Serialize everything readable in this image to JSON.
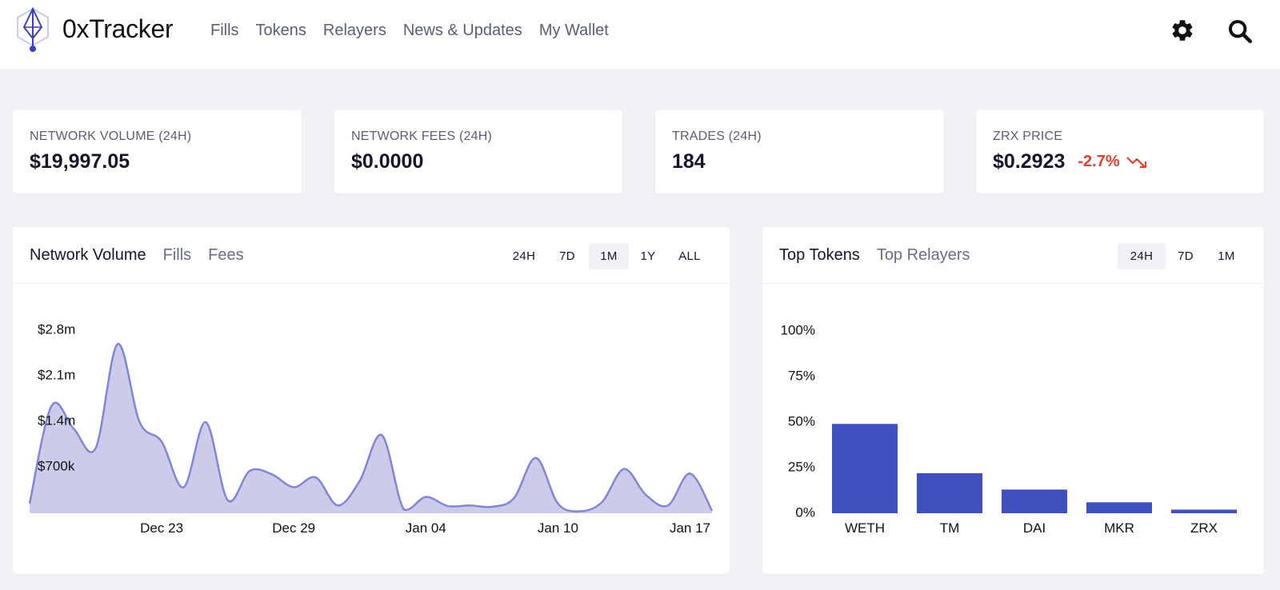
{
  "header": {
    "brand": "0xTracker",
    "nav": [
      "Fills",
      "Tokens",
      "Relayers",
      "News & Updates",
      "My Wallet"
    ]
  },
  "stats": [
    {
      "label": "NETWORK VOLUME (24H)",
      "value": "$19,997.05"
    },
    {
      "label": "NETWORK FEES (24H)",
      "value": "$0.0000"
    },
    {
      "label": "TRADES (24H)",
      "value": "184"
    },
    {
      "label": "ZRX PRICE",
      "value": "$0.2923",
      "change": "-2.7%"
    }
  ],
  "volume_panel": {
    "tabs": [
      "Network Volume",
      "Fills",
      "Fees"
    ],
    "periods": [
      "24H",
      "7D",
      "1M",
      "1Y",
      "ALL"
    ],
    "active_period": "1M"
  },
  "tokens_panel": {
    "tabs": [
      "Top Tokens",
      "Top Relayers"
    ],
    "periods": [
      "24H",
      "7D",
      "1M"
    ],
    "active_period": "24H"
  },
  "colors": {
    "area_fill": "#cccbea",
    "area_stroke": "#7f86d4",
    "bar": "#4150bf",
    "negative": "#e0402f"
  },
  "chart_data": [
    {
      "type": "area",
      "title": "Network Volume",
      "x_tick_labels": [
        "Dec 23",
        "Dec 29",
        "Jan 04",
        "Jan 10",
        "Jan 17"
      ],
      "y_tick_labels": [
        "$700k",
        "$1.4m",
        "$2.1m",
        "$2.8m"
      ],
      "y_ticks": [
        700000,
        1400000,
        2100000,
        2800000
      ],
      "ylim": [
        0,
        2800000
      ],
      "x_days": [
        0,
        1,
        2,
        3,
        4,
        5,
        6,
        7,
        8,
        9,
        10,
        11,
        12,
        13,
        14,
        15,
        16,
        17,
        18,
        19,
        20,
        21,
        22,
        23,
        24,
        25,
        26,
        27,
        28,
        29,
        30,
        31
      ],
      "values": [
        150000,
        1650000,
        1300000,
        1000000,
        2600000,
        1400000,
        1100000,
        400000,
        1400000,
        200000,
        650000,
        600000,
        400000,
        550000,
        120000,
        500000,
        1200000,
        60000,
        250000,
        110000,
        120000,
        100000,
        230000,
        850000,
        150000,
        30000,
        170000,
        680000,
        280000,
        120000,
        610000,
        40000
      ],
      "x_tick_days": [
        6,
        12,
        18,
        24,
        30
      ]
    },
    {
      "type": "bar",
      "title": "Top Tokens",
      "categories": [
        "WETH",
        "TM",
        "DAI",
        "MKR",
        "ZRX"
      ],
      "values": [
        49,
        22,
        13,
        6,
        2
      ],
      "y_tick_labels": [
        "0%",
        "25%",
        "50%",
        "75%",
        "100%"
      ],
      "y_ticks": [
        0,
        25,
        50,
        75,
        100
      ],
      "ylim": [
        0,
        100
      ]
    }
  ]
}
